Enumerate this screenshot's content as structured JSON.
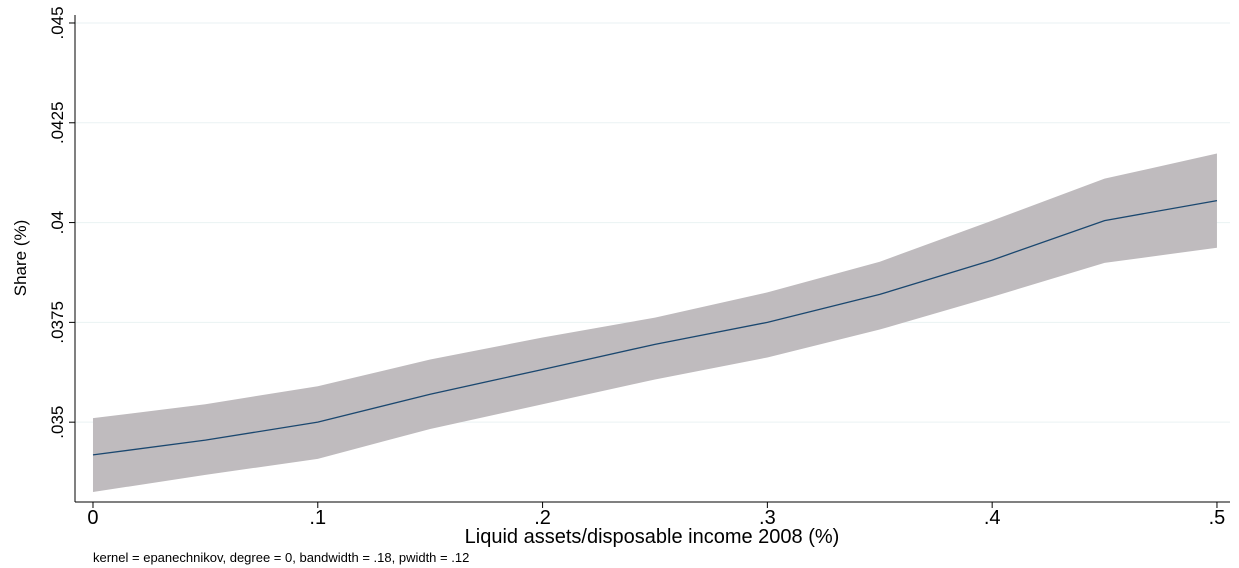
{
  "chart_data": {
    "type": "line_ci",
    "x_label": "Liquid assets/disposable income 2008 (%)",
    "y_label": "Share (%)",
    "note": "kernel = epanechnikov, degree = 0, bandwidth = .18, pwidth = .12",
    "x": [
      0,
      0.05,
      0.1,
      0.15,
      0.2,
      0.25,
      0.3,
      0.35,
      0.4,
      0.45,
      0.5
    ],
    "values": [
      0.03418,
      0.03455,
      0.035,
      0.0357,
      0.03632,
      0.03695,
      0.0375,
      0.0382,
      0.03906,
      0.04005,
      0.04055
    ],
    "ci_upper": [
      0.0351,
      0.03545,
      0.0359,
      0.03657,
      0.03712,
      0.03762,
      0.03825,
      0.03902,
      0.04005,
      0.0411,
      0.04173
    ],
    "ci_lower": [
      0.03325,
      0.03368,
      0.03408,
      0.03483,
      0.03545,
      0.03607,
      0.03662,
      0.03732,
      0.03814,
      0.03899,
      0.03937
    ],
    "color": "#1a476f",
    "band_color": "#bfbbbe",
    "xlim": [
      -0.008,
      0.5058
    ],
    "ylim": [
      0.033,
      0.0452
    ],
    "xticks": [
      0,
      {
        "value": 0.1,
        "label": ".1"
      },
      {
        "value": 0.2,
        "label": ".2"
      },
      {
        "value": 0.3,
        "label": ".3"
      },
      {
        "value": 0.4,
        "label": ".4"
      },
      {
        "value": 0.5,
        "label": ".5"
      }
    ],
    "yticks": [
      {
        "value": 0.035,
        "label": ".035"
      },
      {
        "value": 0.0375,
        "label": ".0375"
      },
      {
        "value": 0.04,
        "label": ".04"
      },
      {
        "value": 0.0425,
        "label": ".0425"
      },
      {
        "value": 0.045,
        "label": ".045"
      }
    ],
    "grid": true
  }
}
